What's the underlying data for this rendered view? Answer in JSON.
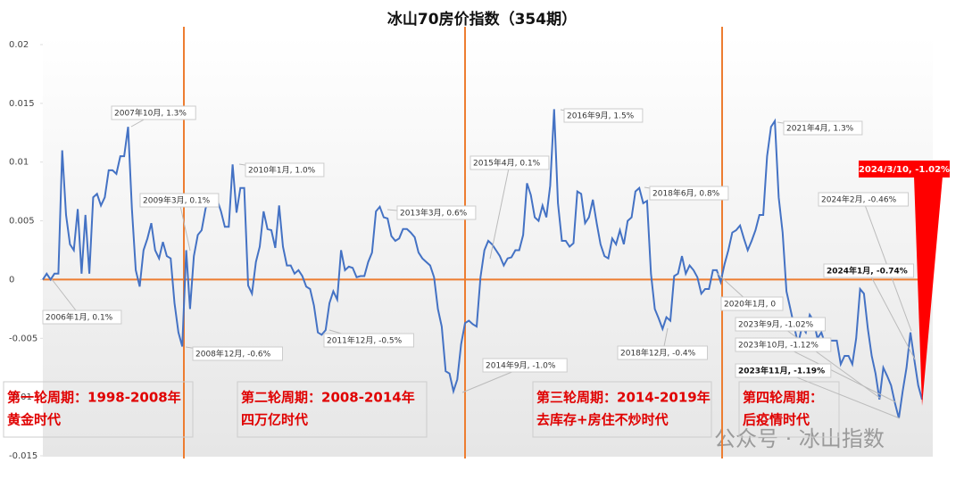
{
  "chart_data": {
    "type": "line",
    "title": "冰山70房价指数（354期）",
    "ylim": [
      -0.015,
      0.02
    ],
    "yticks": [
      0.02,
      0.015,
      0.01,
      0.005,
      0,
      -0.005,
      -0.01,
      -0.015
    ],
    "series": [
      {
        "name": "冰山70房价指数",
        "color": "#4472c4",
        "values": [
          0,
          0.0005,
          0,
          0.0005,
          0.0005,
          0.011,
          0.0055,
          0.003,
          0.0025,
          0.006,
          0.0005,
          0.0055,
          0.0005,
          0.007,
          0.0073,
          0.0063,
          0.007,
          0.0093,
          0.0093,
          0.009,
          0.0105,
          0.0105,
          0.013,
          0.006,
          0.0008,
          -0.0006,
          0.0025,
          0.0035,
          0.0048,
          0.0025,
          0.0018,
          0.0032,
          0.002,
          0.0018,
          -0.002,
          -0.0045,
          -0.0057,
          0.0025,
          -0.0025,
          0.002,
          0.0038,
          0.0042,
          0.006,
          0.0072,
          0.0071,
          0.0068,
          0.0058,
          0.0045,
          0.0045,
          0.0098,
          0.0057,
          0.0078,
          0.0078,
          -0.0005,
          -0.0012,
          0.0015,
          0.0028,
          0.0058,
          0.0043,
          0.0042,
          0.0027,
          0.0063,
          0.0028,
          0.0012,
          0.0012,
          0.0005,
          0.0008,
          0.0003,
          -0.0006,
          -0.0008,
          -0.0022,
          -0.0045,
          -0.0047,
          -0.0043,
          -0.002,
          -0.001,
          -0.0017,
          0.0025,
          0.0008,
          0.0011,
          0.001,
          0.0002,
          0.0003,
          0.0003,
          0.0015,
          0.0023,
          0.0058,
          0.0062,
          0.0053,
          0.0052,
          0.0037,
          0.0033,
          0.0035,
          0.0043,
          0.0043,
          0.004,
          0.0036,
          0.0023,
          0.0018,
          0.0015,
          0.0012,
          0.0002,
          -0.0025,
          -0.004,
          -0.0078,
          -0.008,
          -0.0095,
          -0.0085,
          -0.0055,
          -0.0037,
          -0.0035,
          -0.0038,
          -0.004,
          0.0002,
          0.0025,
          0.0033,
          0.003,
          0.0025,
          0.002,
          0.0012,
          0.0018,
          0.0019,
          0.0025,
          0.0025,
          0.0038,
          0.0082,
          0.0072,
          0.0053,
          0.005,
          0.0063,
          0.0053,
          0.008,
          0.0145,
          0.0065,
          0.0033,
          0.0033,
          0.0028,
          0.0031,
          0.0075,
          0.0073,
          0.0048,
          0.0053,
          0.0068,
          0.0048,
          0.003,
          0.002,
          0.0018,
          0.0035,
          0.003,
          0.0042,
          0.003,
          0.005,
          0.0053,
          0.0075,
          0.0078,
          0.0065,
          0.0067,
          0.0005,
          -0.0025,
          -0.0033,
          -0.0042,
          -0.0032,
          -0.0035,
          0.0003,
          0.0005,
          0.002,
          0.0005,
          0.0012,
          0.0008,
          0.0002,
          -0.0012,
          -0.0008,
          -0.0008,
          0.0008,
          0.0008,
          -0.0002,
          0.0013,
          0.0025,
          0.004,
          0.0042,
          0.0046,
          0.0035,
          0.0025,
          0.0033,
          0.0042,
          0.0055,
          0.0055,
          0.0105,
          0.013,
          0.0135,
          0.007,
          0.004,
          -0.001,
          -0.0025,
          -0.004,
          -0.0055,
          -0.004,
          -0.0045,
          -0.003,
          -0.0035,
          -0.005,
          -0.0045,
          -0.0055,
          -0.0052,
          -0.0052,
          -0.0052,
          -0.0072,
          -0.0065,
          -0.0065,
          -0.0072,
          -0.005,
          -0.0008,
          -0.0012,
          -0.0042,
          -0.0065,
          -0.008,
          -0.0102,
          -0.0075,
          -0.0082,
          -0.009,
          -0.0105,
          -0.0118,
          -0.0095,
          -0.0075,
          -0.0045,
          -0.0068,
          -0.009,
          -0.0102
        ]
      }
    ],
    "annotations": [
      "2007年10月, 1.3%",
      "2006年1月, 0.1%",
      "2009年3月, 0.1%",
      "2008年12月, -0.6%",
      "2010年1月, 1.0%",
      "2011年12月, -0.5%",
      "2013年3月, 0.6%",
      "2014年9月, -1.0%",
      "2015年4月, 0.1%",
      "2016年9月, 1.5%",
      "2018年6月, 0.8%",
      "2018年12月, -0.4%",
      "2020年1月, 0",
      "2021年4月, 1.3%",
      "2024年2月, -0.46%",
      "2024年1月, -0.74%",
      "2023年9月, -1.02%",
      "2023年10月, -1.12%",
      "2023年11月, -1.19%",
      "2024/3/10, -1.02%"
    ],
    "periods": [
      {
        "title": "第一轮周期：1998-2008年",
        "subtitle": "黄金时代"
      },
      {
        "title": "第二轮周期：2008-2014年",
        "subtitle": "四万亿时代"
      },
      {
        "title": "第三轮周期：2014-2019年",
        "subtitle": "去库存+房住不炒时代"
      },
      {
        "title": "第四轮周期：",
        "subtitle": "后疫情时代"
      }
    ],
    "watermark": "公众号 · 冰山指数"
  }
}
